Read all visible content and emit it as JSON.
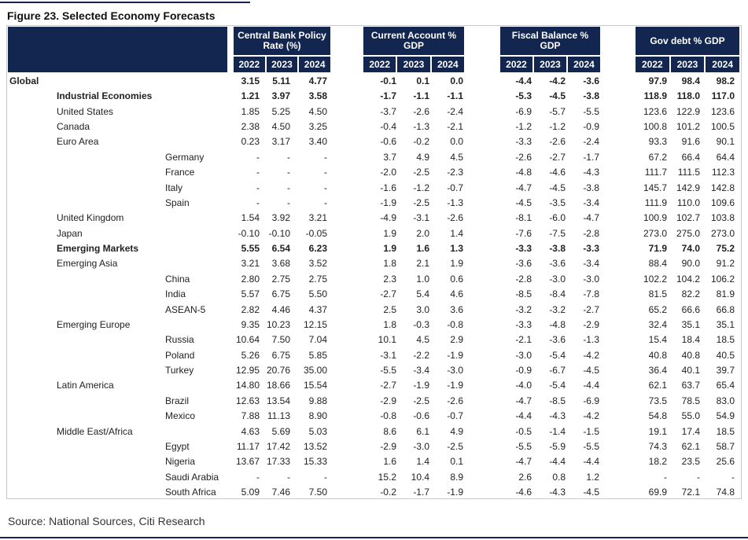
{
  "title": "Figure 23. Selected Economy Forecasts",
  "table": {
    "groups": [
      {
        "name": "Central Bank Policy Rate (%)",
        "years": [
          "2022",
          "2023",
          "2024"
        ]
      },
      {
        "name": "Current Account % GDP",
        "years": [
          "2022",
          "2023",
          "2024"
        ]
      },
      {
        "name": "Fiscal Balance % GDP",
        "years": [
          "2022",
          "2023",
          "2024"
        ]
      },
      {
        "name": "Gov debt % GDP",
        "years": [
          "2022",
          "2023",
          "2024"
        ]
      }
    ],
    "rows": [
      {
        "label": "Global",
        "level": 0,
        "bold": true,
        "values": [
          "3.15",
          "5.11",
          "4.77",
          "-0.1",
          "0.1",
          "0.0",
          "-4.4",
          "-4.2",
          "-3.6",
          "97.9",
          "98.4",
          "98.2"
        ]
      },
      {
        "label": "Industrial Economies",
        "level": 1,
        "bold": true,
        "values": [
          "1.21",
          "3.97",
          "3.58",
          "-1.7",
          "-1.1",
          "-1.1",
          "-5.3",
          "-4.5",
          "-3.8",
          "118.9",
          "118.0",
          "117.0"
        ]
      },
      {
        "label": "United States",
        "level": 1,
        "bold": false,
        "values": [
          "1.85",
          "5.25",
          "4.50",
          "-3.7",
          "-2.6",
          "-2.4",
          "-6.9",
          "-5.7",
          "-5.5",
          "123.6",
          "122.9",
          "123.6"
        ]
      },
      {
        "label": "Canada",
        "level": 1,
        "bold": false,
        "values": [
          "2.38",
          "4.50",
          "3.25",
          "-0.4",
          "-1.3",
          "-2.1",
          "-1.2",
          "-1.2",
          "-0.9",
          "100.8",
          "101.2",
          "100.5"
        ]
      },
      {
        "label": "Euro Area",
        "level": 1,
        "bold": false,
        "values": [
          "0.23",
          "3.17",
          "3.40",
          "-0.6",
          "-0.2",
          "0.0",
          "-3.3",
          "-2.6",
          "-2.4",
          "93.3",
          "91.6",
          "90.1"
        ]
      },
      {
        "label": "Germany",
        "level": 2,
        "bold": false,
        "values": [
          "-",
          "-",
          "-",
          "3.7",
          "4.9",
          "4.5",
          "-2.6",
          "-2.7",
          "-1.7",
          "67.2",
          "66.4",
          "64.4"
        ]
      },
      {
        "label": "France",
        "level": 2,
        "bold": false,
        "values": [
          "-",
          "-",
          "-",
          "-2.0",
          "-2.5",
          "-2.3",
          "-4.8",
          "-4.6",
          "-4.3",
          "111.7",
          "111.5",
          "112.3"
        ]
      },
      {
        "label": "Italy",
        "level": 2,
        "bold": false,
        "values": [
          "-",
          "-",
          "-",
          "-1.6",
          "-1.2",
          "-0.7",
          "-4.7",
          "-4.5",
          "-3.8",
          "145.7",
          "142.9",
          "142.8"
        ]
      },
      {
        "label": "Spain",
        "level": 2,
        "bold": false,
        "values": [
          "-",
          "-",
          "-",
          "-1.9",
          "-2.5",
          "-1.3",
          "-4.5",
          "-3.5",
          "-3.4",
          "111.9",
          "110.0",
          "109.6"
        ]
      },
      {
        "label": "United Kingdom",
        "level": 1,
        "bold": false,
        "values": [
          "1.54",
          "3.92",
          "3.21",
          "-4.9",
          "-3.1",
          "-2.6",
          "-8.1",
          "-6.0",
          "-4.7",
          "100.9",
          "102.7",
          "103.8"
        ]
      },
      {
        "label": "Japan",
        "level": 1,
        "bold": false,
        "values": [
          "-0.10",
          "-0.10",
          "-0.05",
          "1.9",
          "2.0",
          "1.4",
          "-7.6",
          "-7.5",
          "-2.8",
          "273.0",
          "275.0",
          "273.0"
        ]
      },
      {
        "label": "Emerging Markets",
        "level": 1,
        "bold": true,
        "values": [
          "5.55",
          "6.54",
          "6.23",
          "1.9",
          "1.6",
          "1.3",
          "-3.3",
          "-3.8",
          "-3.3",
          "71.9",
          "74.0",
          "75.2"
        ]
      },
      {
        "label": "Emerging Asia",
        "level": 1,
        "bold": false,
        "values": [
          "3.21",
          "3.68",
          "3.52",
          "1.8",
          "2.1",
          "1.9",
          "-3.6",
          "-3.6",
          "-3.4",
          "88.4",
          "90.0",
          "91.2"
        ]
      },
      {
        "label": "China",
        "level": 2,
        "bold": false,
        "values": [
          "2.80",
          "2.75",
          "2.75",
          "2.3",
          "1.0",
          "0.6",
          "-2.8",
          "-3.0",
          "-3.0",
          "102.2",
          "104.2",
          "106.2"
        ]
      },
      {
        "label": "India",
        "level": 2,
        "bold": false,
        "values": [
          "5.57",
          "6.75",
          "5.50",
          "-2.7",
          "5.4",
          "4.6",
          "-8.5",
          "-8.4",
          "-7.8",
          "81.5",
          "82.2",
          "81.9"
        ]
      },
      {
        "label": "ASEAN-5",
        "level": 2,
        "bold": false,
        "values": [
          "2.82",
          "4.46",
          "4.37",
          "2.5",
          "3.0",
          "3.6",
          "-3.2",
          "-3.2",
          "-2.7",
          "65.2",
          "66.6",
          "66.8"
        ]
      },
      {
        "label": "Emerging Europe",
        "level": 1,
        "bold": false,
        "values": [
          "9.35",
          "10.23",
          "12.15",
          "1.8",
          "-0.3",
          "-0.8",
          "-3.3",
          "-4.8",
          "-2.9",
          "32.4",
          "35.1",
          "35.1"
        ]
      },
      {
        "label": "Russia",
        "level": 2,
        "bold": false,
        "values": [
          "10.64",
          "7.50",
          "7.04",
          "10.1",
          "4.5",
          "2.9",
          "-2.1",
          "-3.6",
          "-1.3",
          "15.4",
          "18.4",
          "18.5"
        ]
      },
      {
        "label": "Poland",
        "level": 2,
        "bold": false,
        "values": [
          "5.26",
          "6.75",
          "5.85",
          "-3.1",
          "-2.2",
          "-1.9",
          "-3.0",
          "-5.4",
          "-4.2",
          "40.8",
          "40.8",
          "40.5"
        ]
      },
      {
        "label": "Turkey",
        "level": 2,
        "bold": false,
        "values": [
          "12.95",
          "20.76",
          "35.00",
          "-5.5",
          "-3.4",
          "-3.0",
          "-0.9",
          "-6.7",
          "-4.5",
          "36.4",
          "40.1",
          "39.7"
        ]
      },
      {
        "label": "Latin America",
        "level": 1,
        "bold": false,
        "values": [
          "14.80",
          "18.66",
          "15.54",
          "-2.7",
          "-1.9",
          "-1.9",
          "-4.0",
          "-5.4",
          "-4.4",
          "62.1",
          "63.7",
          "65.4"
        ]
      },
      {
        "label": "Brazil",
        "level": 2,
        "bold": false,
        "values": [
          "12.63",
          "13.54",
          "9.88",
          "-2.9",
          "-2.5",
          "-2.6",
          "-4.7",
          "-8.5",
          "-6.9",
          "73.5",
          "78.5",
          "83.0"
        ]
      },
      {
        "label": "Mexico",
        "level": 2,
        "bold": false,
        "values": [
          "7.88",
          "11.13",
          "8.90",
          "-0.8",
          "-0.6",
          "-0.7",
          "-4.4",
          "-4.3",
          "-4.2",
          "54.8",
          "55.0",
          "54.9"
        ]
      },
      {
        "label": "Middle East/Africa",
        "level": 1,
        "bold": false,
        "values": [
          "4.63",
          "5.69",
          "5.03",
          "8.6",
          "6.1",
          "4.9",
          "-0.5",
          "-1.4",
          "-1.5",
          "19.1",
          "17.4",
          "18.5"
        ]
      },
      {
        "label": "Egypt",
        "level": 2,
        "bold": false,
        "values": [
          "11.17",
          "17.42",
          "13.52",
          "-2.9",
          "-3.0",
          "-2.5",
          "-5.5",
          "-5.9",
          "-5.5",
          "74.3",
          "62.1",
          "58.7"
        ]
      },
      {
        "label": "Nigeria",
        "level": 2,
        "bold": false,
        "values": [
          "13.67",
          "17.33",
          "15.33",
          "1.6",
          "1.4",
          "0.1",
          "-4.7",
          "-4.4",
          "-4.4",
          "18.2",
          "23.5",
          "25.6"
        ]
      },
      {
        "label": "Saudi Arabia",
        "level": 2,
        "bold": false,
        "values": [
          "-",
          "-",
          "-",
          "15.2",
          "10.4",
          "8.9",
          "2.6",
          "0.8",
          "1.2",
          "-",
          "-",
          "-"
        ]
      },
      {
        "label": "South Africa",
        "level": 2,
        "bold": false,
        "values": [
          "5.09",
          "7.46",
          "7.50",
          "-0.2",
          "-1.7",
          "-1.9",
          "-4.6",
          "-4.3",
          "-4.5",
          "69.9",
          "72.1",
          "74.8"
        ]
      }
    ]
  },
  "source": "Source: National Sources, Citi Research"
}
